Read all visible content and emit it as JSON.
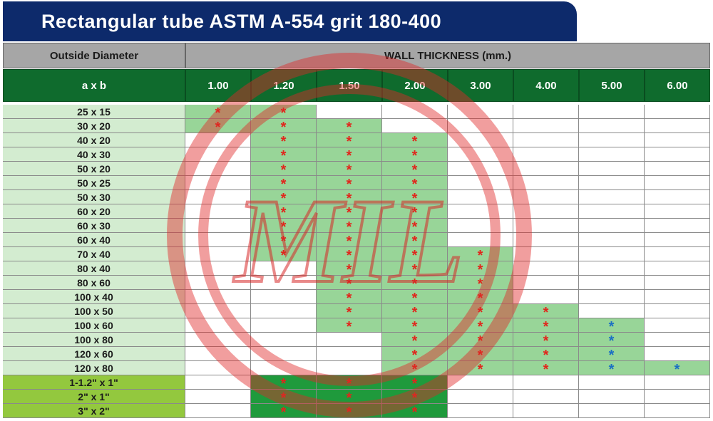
{
  "title": "Rectangular tube ASTM A-554 grit 180-400",
  "header": {
    "outside_diameter": "Outside Diameter",
    "wall_thickness": "WALL THICKNESS (mm.)",
    "axb": "a x b",
    "thicknesses": [
      "1.00",
      "1.20",
      "1.50",
      "2.00",
      "3.00",
      "4.00",
      "5.00",
      "6.00"
    ]
  },
  "metric_rows": [
    {
      "size": "25 x 15",
      "cells": [
        "*",
        "*",
        "",
        "",
        "",
        "",
        "",
        ""
      ]
    },
    {
      "size": "30 x 20",
      "cells": [
        "*",
        "*",
        "*",
        "",
        "",
        "",
        "",
        ""
      ]
    },
    {
      "size": "40 x 20",
      "cells": [
        "",
        "*",
        "*",
        "*",
        "",
        "",
        "",
        ""
      ]
    },
    {
      "size": "40 x 30",
      "cells": [
        "",
        "*",
        "*",
        "*",
        "",
        "",
        "",
        ""
      ]
    },
    {
      "size": "50 x 20",
      "cells": [
        "",
        "*",
        "*",
        "*",
        "",
        "",
        "",
        ""
      ]
    },
    {
      "size": "50 x 25",
      "cells": [
        "",
        "*",
        "*",
        "*",
        "",
        "",
        "",
        ""
      ]
    },
    {
      "size": "50 x 30",
      "cells": [
        "",
        "*",
        "*",
        "*",
        "",
        "",
        "",
        ""
      ]
    },
    {
      "size": "60 x 20",
      "cells": [
        "",
        "*",
        "*",
        "*",
        "",
        "",
        "",
        ""
      ]
    },
    {
      "size": "60 x 30",
      "cells": [
        "",
        "*",
        "*",
        "*",
        "",
        "",
        "",
        ""
      ]
    },
    {
      "size": "60 x 40",
      "cells": [
        "",
        "*",
        "*",
        "*",
        "",
        "",
        "",
        ""
      ]
    },
    {
      "size": "70 x 40",
      "cells": [
        "",
        "*",
        "*",
        "*",
        "*",
        "",
        "",
        ""
      ]
    },
    {
      "size": "80 x 40",
      "cells": [
        "",
        "",
        "*",
        "*",
        "*",
        "",
        "",
        ""
      ]
    },
    {
      "size": "80 x 60",
      "cells": [
        "",
        "",
        "*",
        "*",
        "*",
        "",
        "",
        ""
      ]
    },
    {
      "size": "100 x 40",
      "cells": [
        "",
        "",
        "*",
        "*",
        "*",
        "",
        "",
        ""
      ]
    },
    {
      "size": "100 x 50",
      "cells": [
        "",
        "",
        "*",
        "*",
        "*",
        "*",
        "",
        ""
      ]
    },
    {
      "size": "100 x 60",
      "cells": [
        "",
        "",
        "*",
        "*",
        "*",
        "*",
        "*",
        ""
      ]
    },
    {
      "size": "100 x 80",
      "cells": [
        "",
        "",
        "",
        "*",
        "*",
        "*",
        "*",
        ""
      ]
    },
    {
      "size": "120 x 60",
      "cells": [
        "",
        "",
        "",
        "*",
        "*",
        "*",
        "*",
        ""
      ]
    },
    {
      "size": "120 x 80",
      "cells": [
        "",
        "",
        "",
        "*",
        "*",
        "*",
        "*",
        "*"
      ]
    }
  ],
  "inch_rows": [
    {
      "size": "1-1.2\" x 1\"",
      "cells": [
        "",
        "*",
        "*",
        "*",
        "",
        "",
        "",
        ""
      ]
    },
    {
      "size": "2\" x 1\"",
      "cells": [
        "",
        "*",
        "*",
        "*",
        "",
        "",
        "",
        ""
      ]
    },
    {
      "size": "3\" x 2\"",
      "cells": [
        "",
        "*",
        "*",
        "*",
        "",
        "",
        "",
        ""
      ]
    }
  ],
  "watermark": "MIL"
}
